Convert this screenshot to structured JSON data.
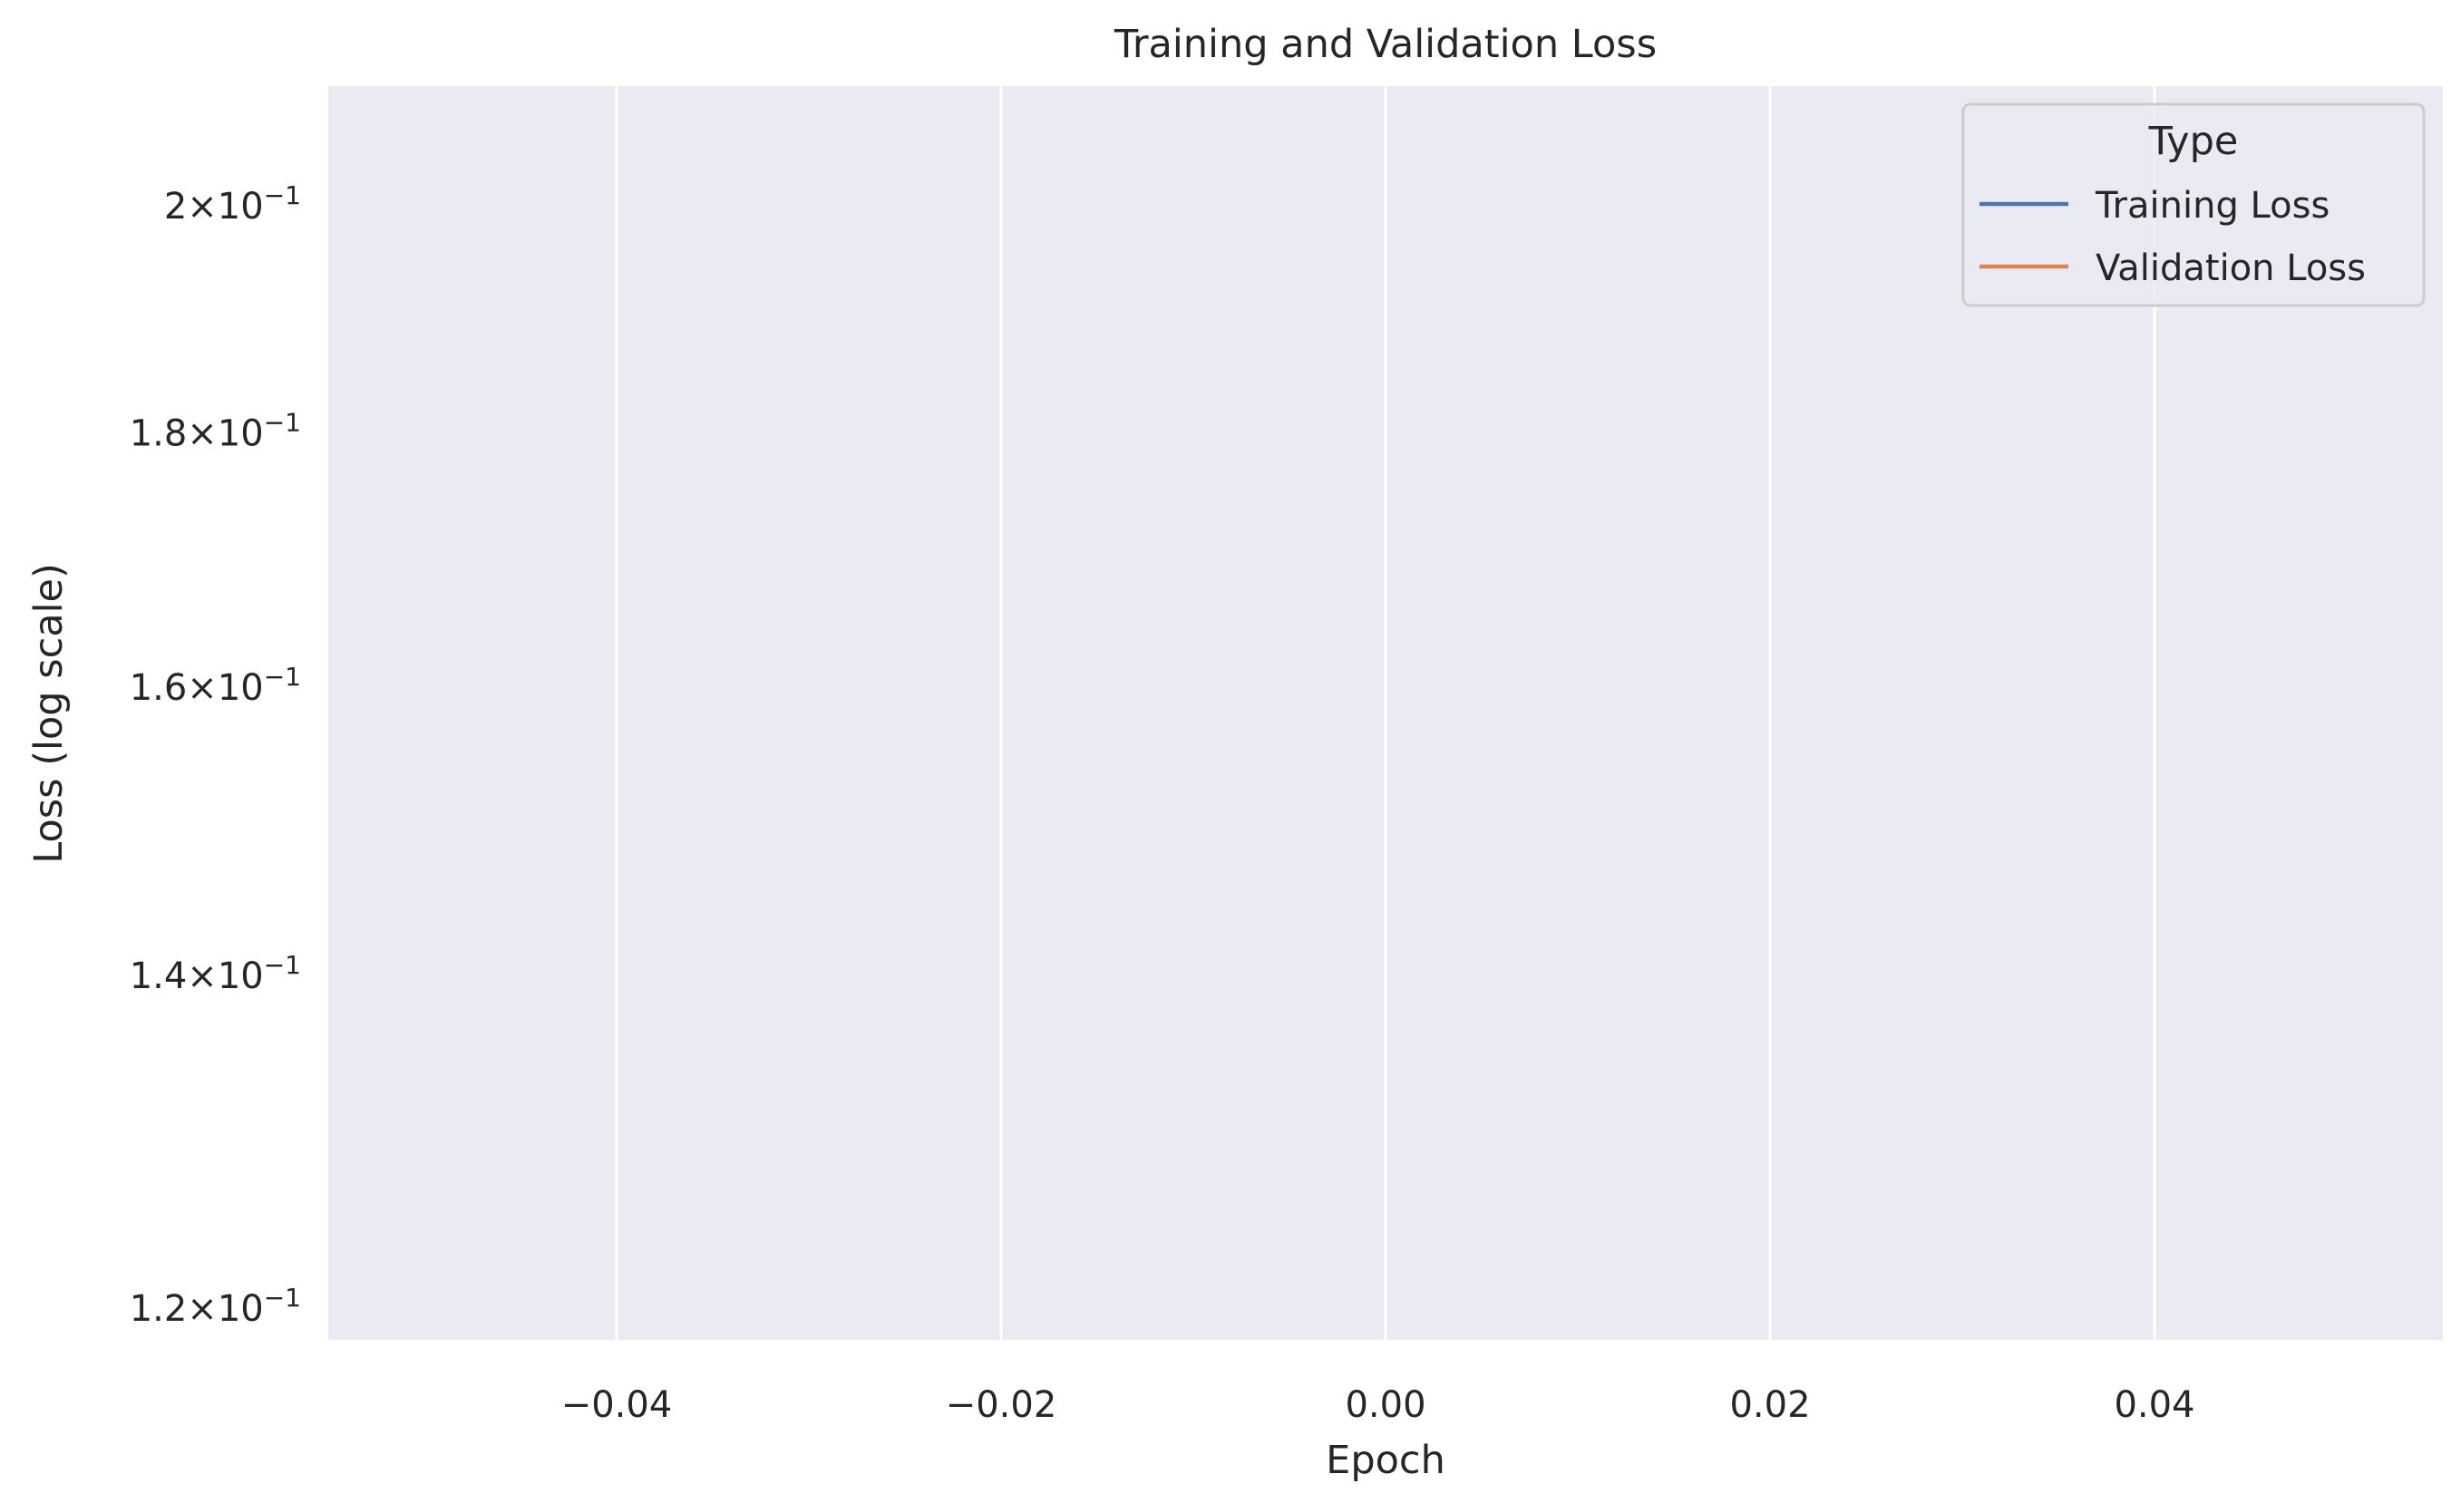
{
  "chart_data": {
    "type": "line",
    "title": "Training and Validation Loss",
    "xlabel": "Epoch",
    "ylabel": "Loss (log scale)",
    "xlim": [
      -0.055,
      0.055
    ],
    "ylim": [
      0.1182,
      0.2113
    ],
    "yscale": "log",
    "grid": true,
    "x_ticks": [
      -0.04,
      -0.02,
      0.0,
      0.02,
      0.04
    ],
    "x_tick_labels": [
      "−0.04",
      "−0.02",
      "0.00",
      "0.02",
      "0.04"
    ],
    "y_ticks": [
      {
        "value": 0.2,
        "mantissa": "2",
        "base": "10",
        "exponent": "−1"
      },
      {
        "value": 0.18,
        "mantissa": "1.8",
        "base": "10",
        "exponent": "−1"
      },
      {
        "value": 0.16,
        "mantissa": "1.6",
        "base": "10",
        "exponent": "−1"
      },
      {
        "value": 0.14,
        "mantissa": "1.4",
        "base": "10",
        "exponent": "−1"
      },
      {
        "value": 0.12,
        "mantissa": "1.2",
        "base": "10",
        "exponent": "−1"
      }
    ],
    "legend": {
      "title": "Type",
      "position": "top-right",
      "entries": [
        {
          "label": "Training Loss",
          "color": "#4c72b0"
        },
        {
          "label": "Validation Loss",
          "color": "#dd8452"
        }
      ]
    },
    "series": [
      {
        "name": "Training Loss",
        "color": "#4c72b0",
        "x": [],
        "y": []
      },
      {
        "name": "Validation Loss",
        "color": "#dd8452",
        "x": [],
        "y": []
      }
    ],
    "colors": {
      "plot_background": "#eaeaf2",
      "grid": "#ffffff",
      "text": "#262626"
    }
  }
}
